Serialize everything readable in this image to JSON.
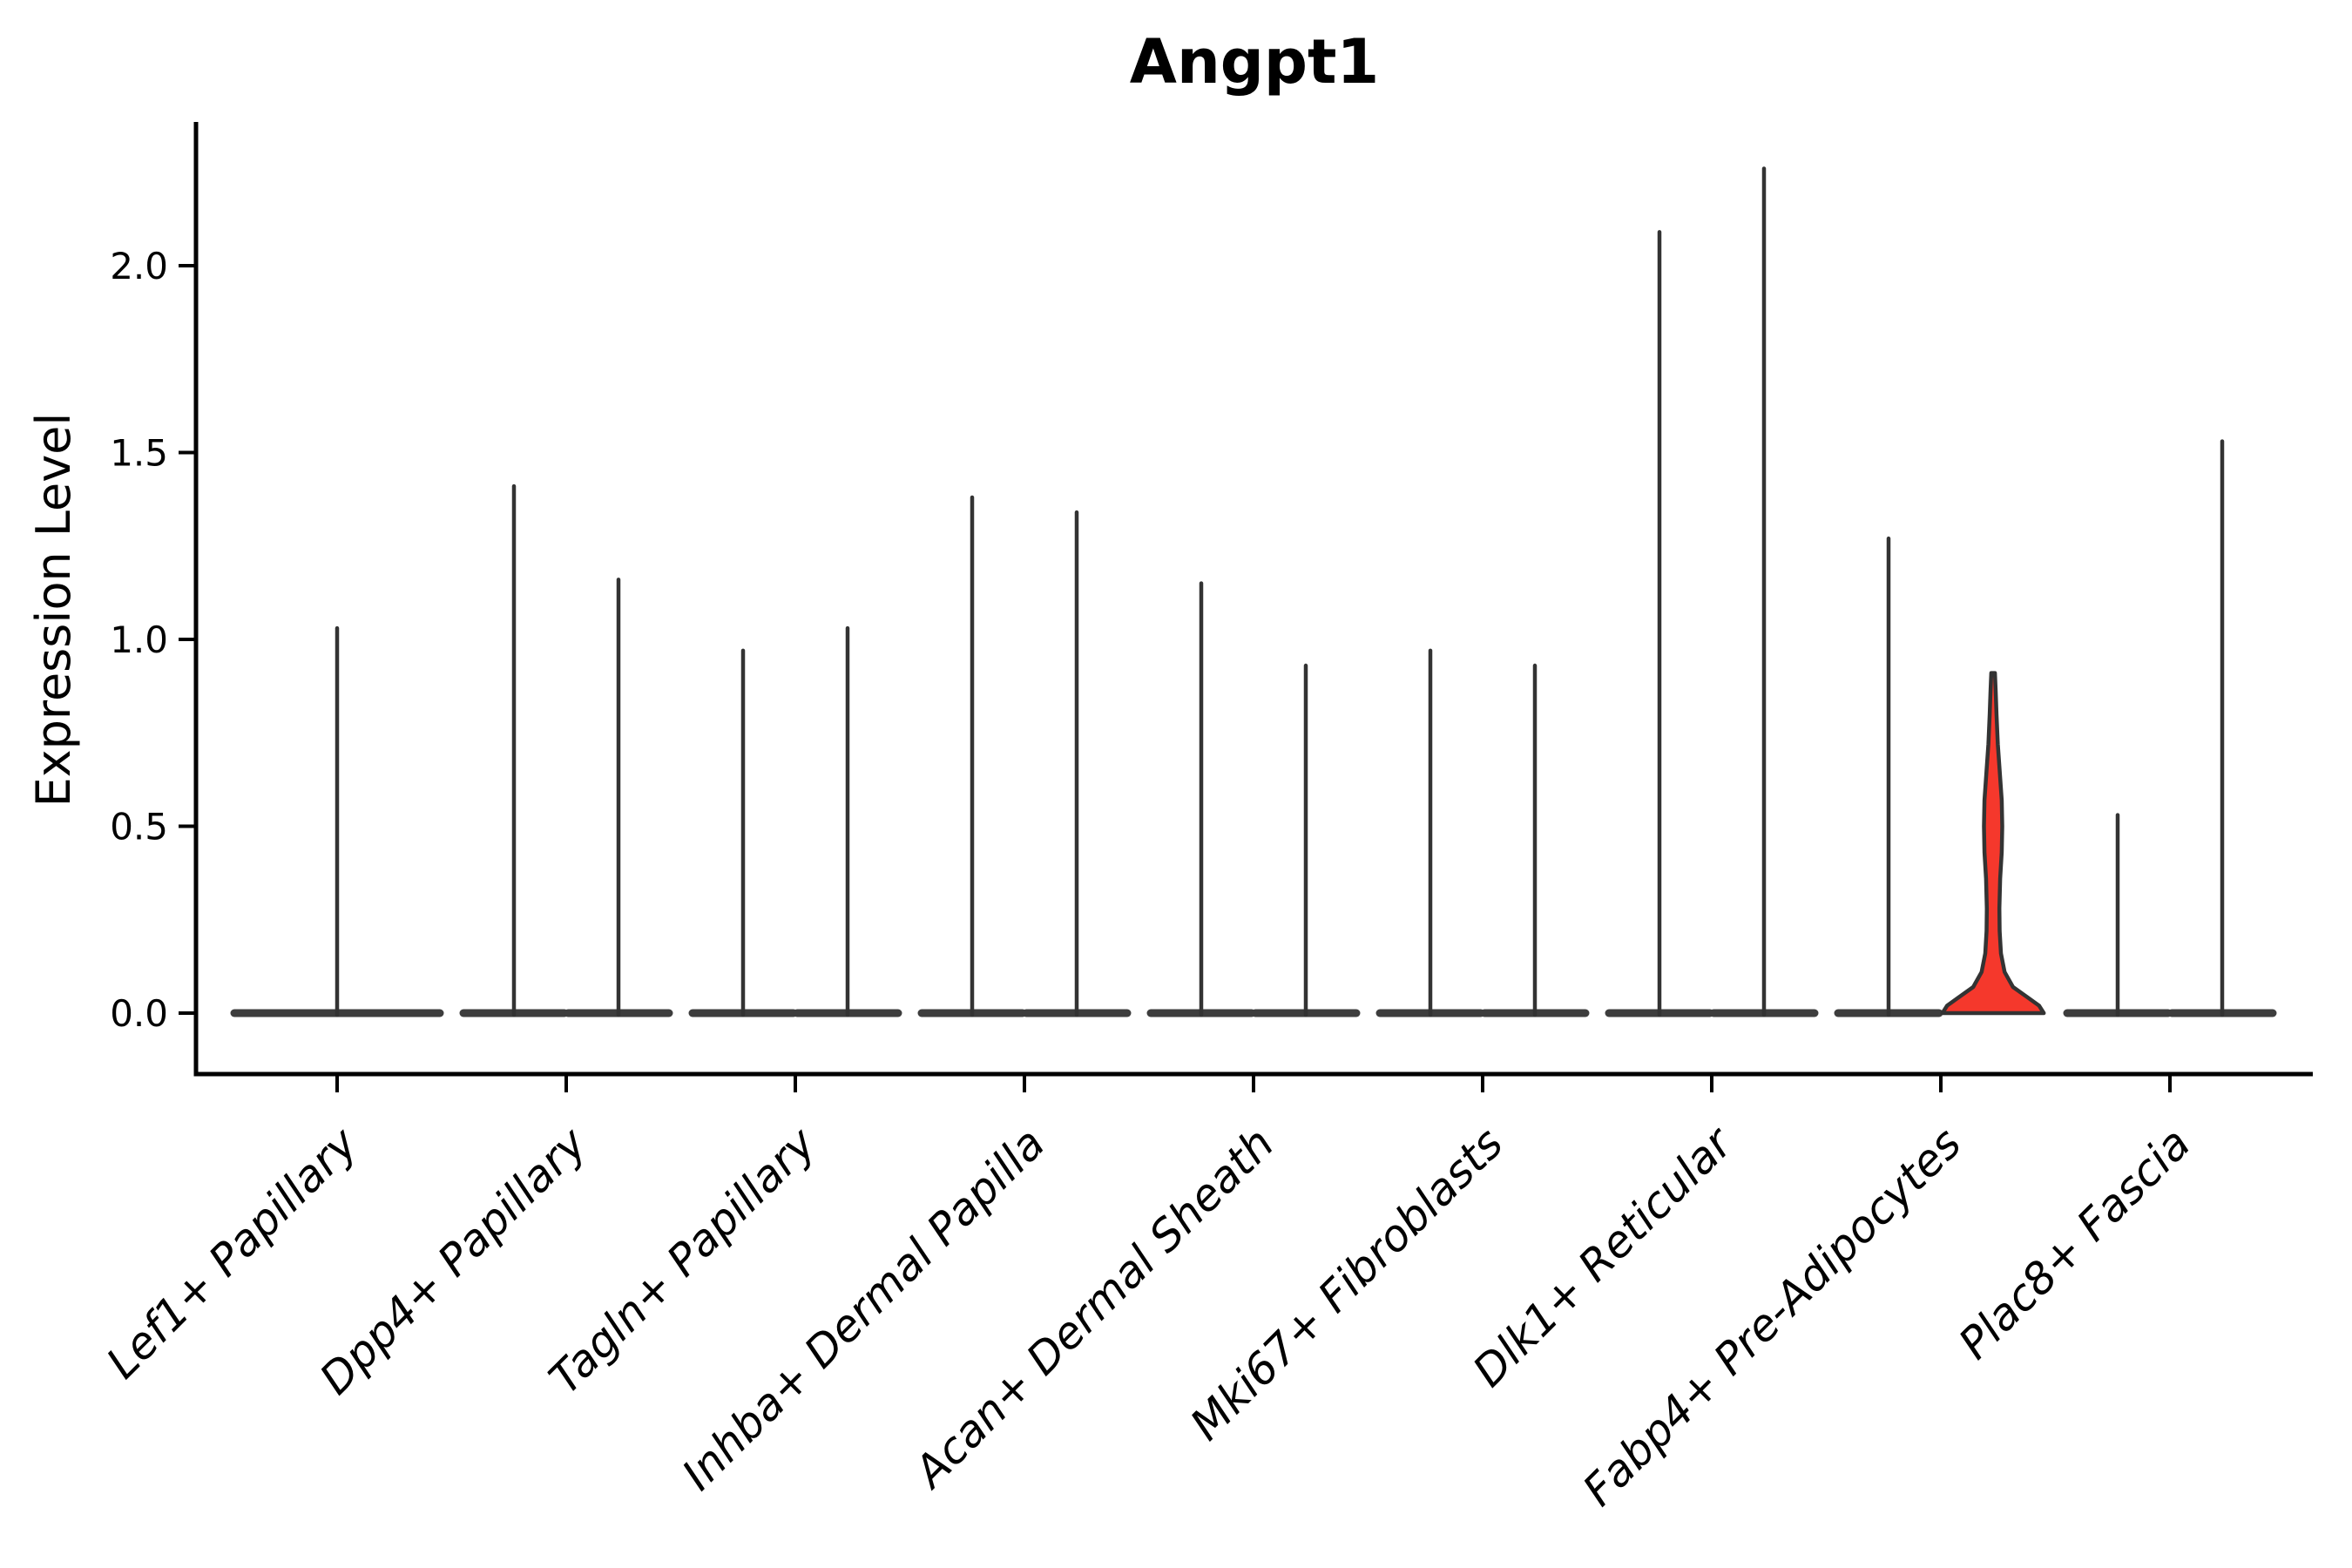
{
  "figure": {
    "title": "Angpt1",
    "ylabel": "Expression Level"
  },
  "chart_data": {
    "type": "violin",
    "title": "Angpt1",
    "xlabel": "",
    "ylabel": "Expression Level",
    "yticks": [
      0.0,
      0.5,
      1.0,
      1.5,
      2.0
    ],
    "ytick_labels": [
      "0.0",
      "0.5",
      "1.0",
      "1.5",
      "2.0"
    ],
    "ylim": [
      -0.163,
      2.385
    ],
    "grid": false,
    "legend": "none",
    "categories": [
      "Lef1+ Papillary",
      "Dpp4+ Papillary",
      "Tagln+ Papillary",
      "Inhba+ Dermal Papilla",
      "Acan+ Dermal Sheath",
      "Mki67+ Fibroblasts",
      "Dlk1+ Reticular",
      "Fabp4+ Pre-Adipocytes",
      "Plac8+ Fascia"
    ],
    "description": "Violin plot of Angpt1 expression; most violins collapse to a flat base at 0 with a thin spike to the max expression value. Categories 2-9 contain two half-width violins; category 1 has one full-width violin. The right violin of Fabp4+ Pre-Adipocytes is highlighted red with a visible density body.",
    "violins": [
      {
        "cat": 0,
        "slot": "full",
        "max": 1.03,
        "highlighted": false
      },
      {
        "cat": 1,
        "slot": "left",
        "max": 1.41,
        "highlighted": false
      },
      {
        "cat": 1,
        "slot": "right",
        "max": 1.16,
        "highlighted": false
      },
      {
        "cat": 2,
        "slot": "left",
        "max": 0.97,
        "highlighted": false
      },
      {
        "cat": 2,
        "slot": "right",
        "max": 1.03,
        "highlighted": false
      },
      {
        "cat": 3,
        "slot": "left",
        "max": 1.38,
        "highlighted": false
      },
      {
        "cat": 3,
        "slot": "right",
        "max": 1.34,
        "highlighted": false
      },
      {
        "cat": 4,
        "slot": "left",
        "max": 1.15,
        "highlighted": false
      },
      {
        "cat": 4,
        "slot": "right",
        "max": 0.93,
        "highlighted": false
      },
      {
        "cat": 5,
        "slot": "left",
        "max": 0.97,
        "highlighted": false
      },
      {
        "cat": 5,
        "slot": "right",
        "max": 0.93,
        "highlighted": false
      },
      {
        "cat": 6,
        "slot": "left",
        "max": 2.09,
        "highlighted": false
      },
      {
        "cat": 6,
        "slot": "right",
        "max": 2.26,
        "highlighted": false
      },
      {
        "cat": 7,
        "slot": "left",
        "max": 1.27,
        "highlighted": false
      },
      {
        "cat": 7,
        "slot": "right",
        "max": 0.91,
        "highlighted": true,
        "profile": [
          [
            0.91,
            0.035
          ],
          [
            0.86,
            0.05
          ],
          [
            0.8,
            0.065
          ],
          [
            0.72,
            0.09
          ],
          [
            0.64,
            0.13
          ],
          [
            0.57,
            0.165
          ],
          [
            0.5,
            0.175
          ],
          [
            0.43,
            0.165
          ],
          [
            0.36,
            0.135
          ],
          [
            0.28,
            0.12
          ],
          [
            0.22,
            0.125
          ],
          [
            0.16,
            0.15
          ],
          [
            0.11,
            0.22
          ],
          [
            0.07,
            0.38
          ],
          [
            0.04,
            0.68
          ],
          [
            0.02,
            0.88
          ],
          [
            0.0,
            0.97
          ]
        ]
      },
      {
        "cat": 8,
        "slot": "left",
        "max": 0.53,
        "highlighted": false
      },
      {
        "cat": 8,
        "slot": "right",
        "max": 1.53,
        "highlighted": false
      }
    ],
    "colors": {
      "violin_stroke": "#333333",
      "base_dash": "#3d3d3d",
      "highlight_fill": "#f5382c",
      "axis": "#000000",
      "background": "#ffffff"
    },
    "layout_hints": {
      "legend_position": "none",
      "x_tick_rotation_deg": 45,
      "x_tick_style": "italic",
      "spines": [
        "left",
        "bottom"
      ]
    }
  }
}
